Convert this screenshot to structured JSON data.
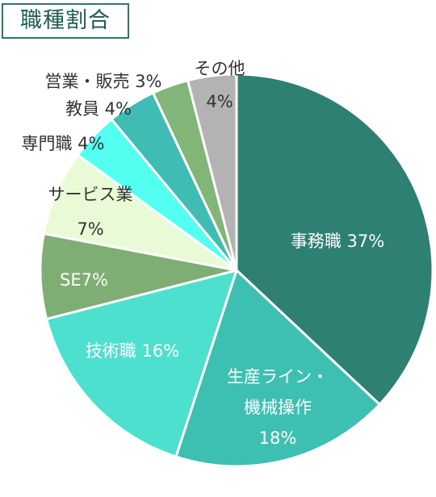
{
  "chart_data": {
    "type": "pie",
    "title": "職種割合",
    "start": "12 o'clock",
    "direction": "clockwise",
    "slices": [
      {
        "name": "事務職",
        "value": 37,
        "color": "#2e8073",
        "label_lines": [
          "事務職 37%"
        ],
        "label_color": "#ffffff"
      },
      {
        "name": "生産ライン・機械操作",
        "value": 18,
        "color": "#3dbfb2",
        "label_lines": [
          "生産ライン・",
          "機械操作",
          "18%"
        ],
        "label_color": "#ffffff"
      },
      {
        "name": "技術職",
        "value": 16,
        "color": "#4de0cf",
        "label_lines": [
          "技術職 16%"
        ],
        "label_color": "#ffffff"
      },
      {
        "name": "SE",
        "value": 7,
        "color": "#7fae75",
        "label_lines": [
          "SE7%"
        ],
        "label_color": "#ffffff"
      },
      {
        "name": "サービス業",
        "value": 7,
        "color": "#e8fbd6",
        "label_lines": [
          "サービス業",
          "7%"
        ],
        "label_color": "#333333"
      },
      {
        "name": "専門職",
        "value": 4,
        "color": "#52fff0",
        "label_lines": [
          "専門職 4%"
        ],
        "label_color": "#333333"
      },
      {
        "name": "教員",
        "value": 4,
        "color": "#3fbcb3",
        "label_lines": [
          "教員 4%"
        ],
        "label_color": "#333333"
      },
      {
        "name": "営業・販売",
        "value": 3,
        "color": "#82b679",
        "label_lines": [
          "営業・販売 3%"
        ],
        "label_color": "#333333"
      },
      {
        "name": "その他",
        "value": 4,
        "color": "#b3b3b3",
        "label_lines": [
          "その他",
          "4%"
        ],
        "label_color": "#333333"
      }
    ]
  }
}
